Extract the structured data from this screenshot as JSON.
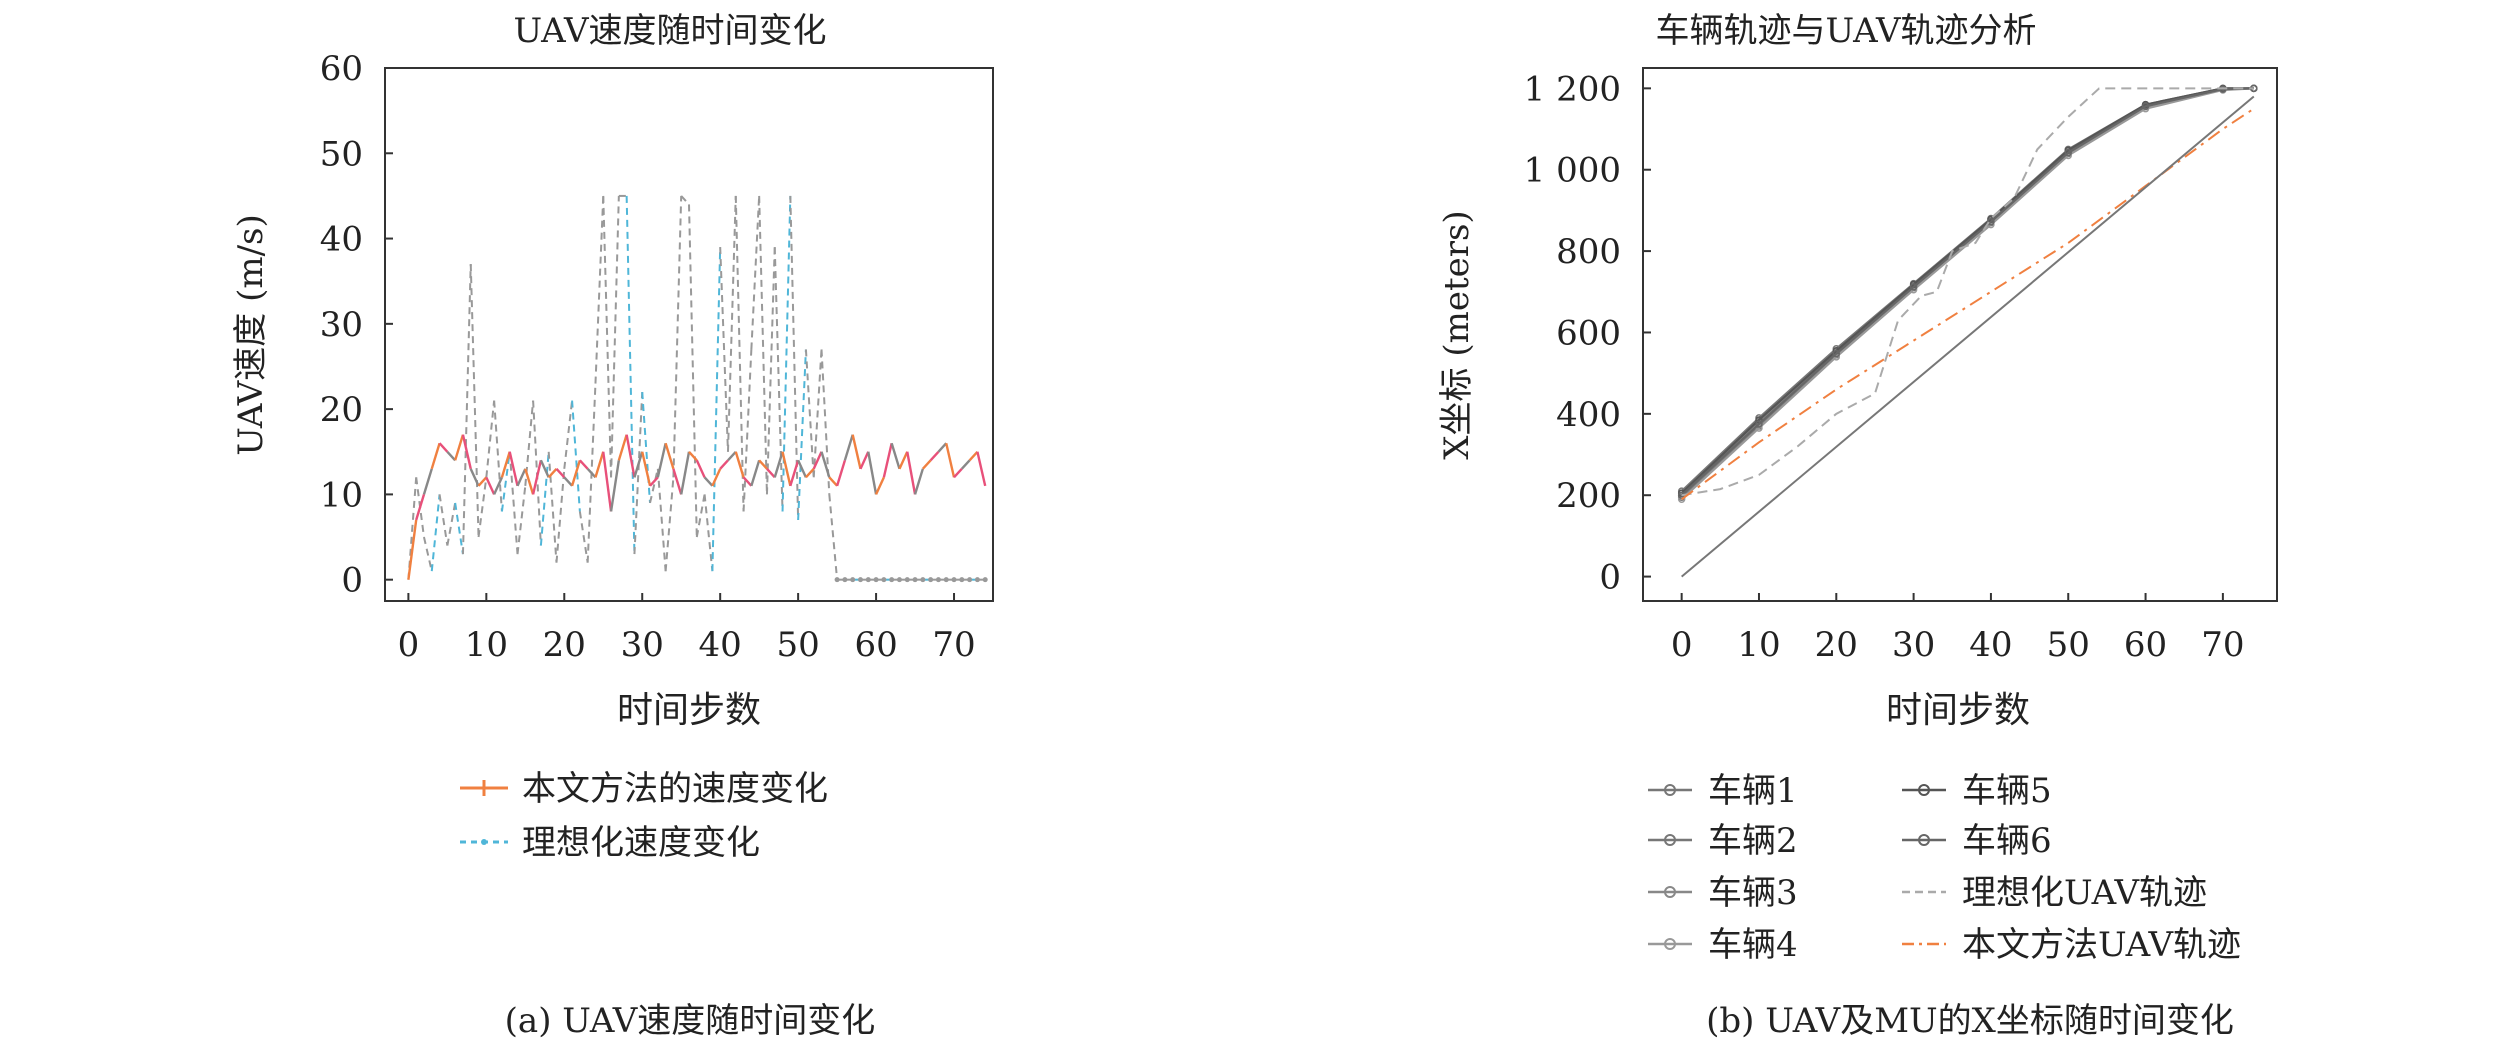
{
  "chart_data": [
    {
      "type": "line",
      "title": "UAV速度随时间变化",
      "xlabel": "时间步数",
      "ylabel": "UAV速度 (m/s)",
      "xlim": [
        -3,
        75
      ],
      "ylim": [
        -2.5,
        60
      ],
      "xticks": [
        0,
        10,
        20,
        30,
        40,
        50,
        60,
        70
      ],
      "yticks": [
        0,
        10,
        20,
        30,
        40,
        50,
        60
      ],
      "caption": "(a) UAV速度随时间变化",
      "series": [
        {
          "name": "本文方法的速度变化",
          "colors": [
            "#f08040",
            "#e8507a"
          ],
          "x": [
            0,
            1,
            2,
            3,
            4,
            5,
            6,
            7,
            8,
            9,
            10,
            11,
            12,
            13,
            14,
            15,
            16,
            17,
            18,
            19,
            20,
            21,
            22,
            23,
            24,
            25,
            26,
            27,
            28,
            29,
            30,
            31,
            32,
            33,
            34,
            35,
            36,
            37,
            38,
            39,
            40,
            41,
            42,
            43,
            44,
            45,
            46,
            47,
            48,
            49,
            50,
            51,
            52,
            53,
            54,
            55,
            56,
            57,
            58,
            59,
            60,
            61,
            62,
            63,
            64,
            65,
            66,
            67,
            68,
            69,
            70,
            71,
            72,
            73,
            74
          ],
          "values": [
            0,
            7,
            10,
            13,
            16,
            15,
            14,
            17,
            13,
            11,
            12,
            10,
            12,
            15,
            11,
            13,
            10,
            14,
            12,
            13,
            12,
            11,
            14,
            13,
            12,
            15,
            8,
            14,
            17,
            12,
            15,
            11,
            12,
            16,
            13,
            10,
            15,
            14,
            12,
            11,
            13,
            14,
            15,
            12,
            11,
            14,
            13,
            12,
            15,
            11,
            14,
            12,
            13,
            15,
            12,
            11,
            14,
            17,
            13,
            15,
            10,
            12,
            16,
            13,
            15,
            10,
            13,
            14,
            15,
            16,
            12,
            13,
            14,
            15,
            11
          ]
        },
        {
          "name": "理想化速度变化",
          "colors": [
            "#4fb6d8",
            "#999999"
          ],
          "x": [
            0,
            1,
            2,
            3,
            4,
            5,
            6,
            7,
            8,
            9,
            10,
            11,
            12,
            13,
            14,
            15,
            16,
            17,
            18,
            19,
            20,
            21,
            22,
            23,
            24,
            25,
            26,
            27,
            28,
            29,
            30,
            31,
            32,
            33,
            34,
            35,
            36,
            37,
            38,
            39,
            40,
            41,
            42,
            43,
            44,
            45,
            46,
            47,
            48,
            49,
            50,
            51,
            52,
            53,
            54,
            55,
            56,
            57,
            58,
            59,
            60,
            61,
            62,
            63,
            64,
            65,
            66,
            67,
            68,
            69,
            70,
            71,
            72,
            73,
            74
          ],
          "values": [
            0,
            12,
            5,
            1,
            10,
            4,
            9,
            3,
            37,
            5,
            12,
            21,
            8,
            15,
            3,
            11,
            21,
            4,
            15,
            2,
            13,
            21,
            8,
            2,
            23,
            45,
            12,
            45,
            45,
            3,
            22,
            9,
            13,
            1,
            12,
            45,
            44,
            5,
            10,
            1,
            39,
            15,
            45,
            8,
            27,
            45,
            10,
            39,
            8,
            45,
            7,
            27,
            12,
            27,
            10,
            0,
            0,
            0,
            0,
            0,
            0,
            0,
            0,
            0,
            0,
            0,
            0,
            0,
            0,
            0,
            0,
            0,
            0,
            0,
            0
          ]
        }
      ]
    },
    {
      "type": "line",
      "title": "车辆轨迹与UAV轨迹分析",
      "xlabel": "时间步数",
      "ylabel": "X坐标 (meters)",
      "xlim": [
        -5,
        77
      ],
      "ylim": [
        -60,
        1250
      ],
      "xticks": [
        0,
        10,
        20,
        30,
        40,
        50,
        60,
        70
      ],
      "yticks": [
        0,
        200,
        400,
        600,
        800,
        1000,
        1200
      ],
      "ytick_labels": [
        "0",
        "200",
        "400",
        "600",
        "800",
        "1 000",
        "1 200"
      ],
      "caption": "(b) UAV及MU的X坐标随时间变化",
      "series": [
        {
          "name": "车辆1",
          "color": "#777777",
          "marker": "o",
          "x": [
            0,
            10,
            20,
            30,
            40,
            50,
            60,
            70,
            74
          ],
          "values": [
            210,
            390,
            560,
            720,
            880,
            1050,
            1160,
            1200,
            1200
          ]
        },
        {
          "name": "车辆2",
          "color": "#777777",
          "marker": "o",
          "x": [
            0,
            10,
            20,
            30,
            40,
            50,
            60,
            70,
            74
          ],
          "values": [
            195,
            370,
            545,
            710,
            870,
            1040,
            1155,
            1198,
            1200
          ]
        },
        {
          "name": "车辆3",
          "color": "#888888",
          "marker": "^",
          "x": [
            0,
            10,
            20,
            30,
            40,
            50,
            60,
            70,
            74
          ],
          "values": [
            200,
            380,
            550,
            715,
            875,
            1045,
            1158,
            1199,
            1200
          ]
        },
        {
          "name": "车辆4",
          "color": "#999999",
          "marker": "o",
          "x": [
            0,
            10,
            20,
            30,
            40,
            50,
            60,
            70,
            74
          ],
          "values": [
            190,
            365,
            540,
            705,
            865,
            1035,
            1150,
            1196,
            1200
          ]
        },
        {
          "name": "车辆5",
          "color": "#555555",
          "marker": "*",
          "x": [
            0,
            10,
            20,
            30,
            40,
            50,
            60,
            70,
            74
          ],
          "values": [
            205,
            385,
            555,
            718,
            878,
            1048,
            1160,
            1200,
            1200
          ]
        },
        {
          "name": "车辆6",
          "color": "#666666",
          "marker": "o",
          "x": [
            0,
            10,
            20,
            30,
            40,
            50,
            60,
            70,
            74
          ],
          "values": [
            200,
            375,
            548,
            712,
            872,
            1042,
            1156,
            1198,
            1200
          ]
        },
        {
          "name": "理想化UAV轨迹",
          "color": "#aaaaaa",
          "dash": "dashed",
          "x": [
            0,
            5,
            10,
            15,
            20,
            25,
            28,
            31,
            33,
            35,
            38,
            40,
            43,
            46,
            50,
            54,
            58,
            62,
            66,
            70,
            74
          ],
          "values": [
            200,
            215,
            250,
            320,
            400,
            450,
            630,
            690,
            700,
            800,
            820,
            880,
            930,
            1050,
            1130,
            1200,
            1200,
            1200,
            1200,
            1200,
            1200
          ]
        },
        {
          "name": "本文方法UAV轨迹",
          "colors": [
            "#f08040",
            "#e8507a",
            "#999999"
          ],
          "dash": "dashdot",
          "x": [
            0,
            10,
            20,
            30,
            40,
            50,
            60,
            70,
            74
          ],
          "values": [
            190,
            330,
            460,
            580,
            700,
            820,
            960,
            1100,
            1150
          ]
        },
        {
          "name": "",
          "color": "#777777",
          "dash": "solid",
          "x": [
            0,
            74
          ],
          "values": [
            0,
            1180
          ]
        }
      ],
      "legend_columns": [
        [
          "车辆1",
          "车辆2",
          "车辆3",
          "车辆4"
        ],
        [
          "车辆5",
          "车辆6",
          "理想化UAV轨迹",
          "本文方法UAV轨迹"
        ]
      ]
    }
  ]
}
